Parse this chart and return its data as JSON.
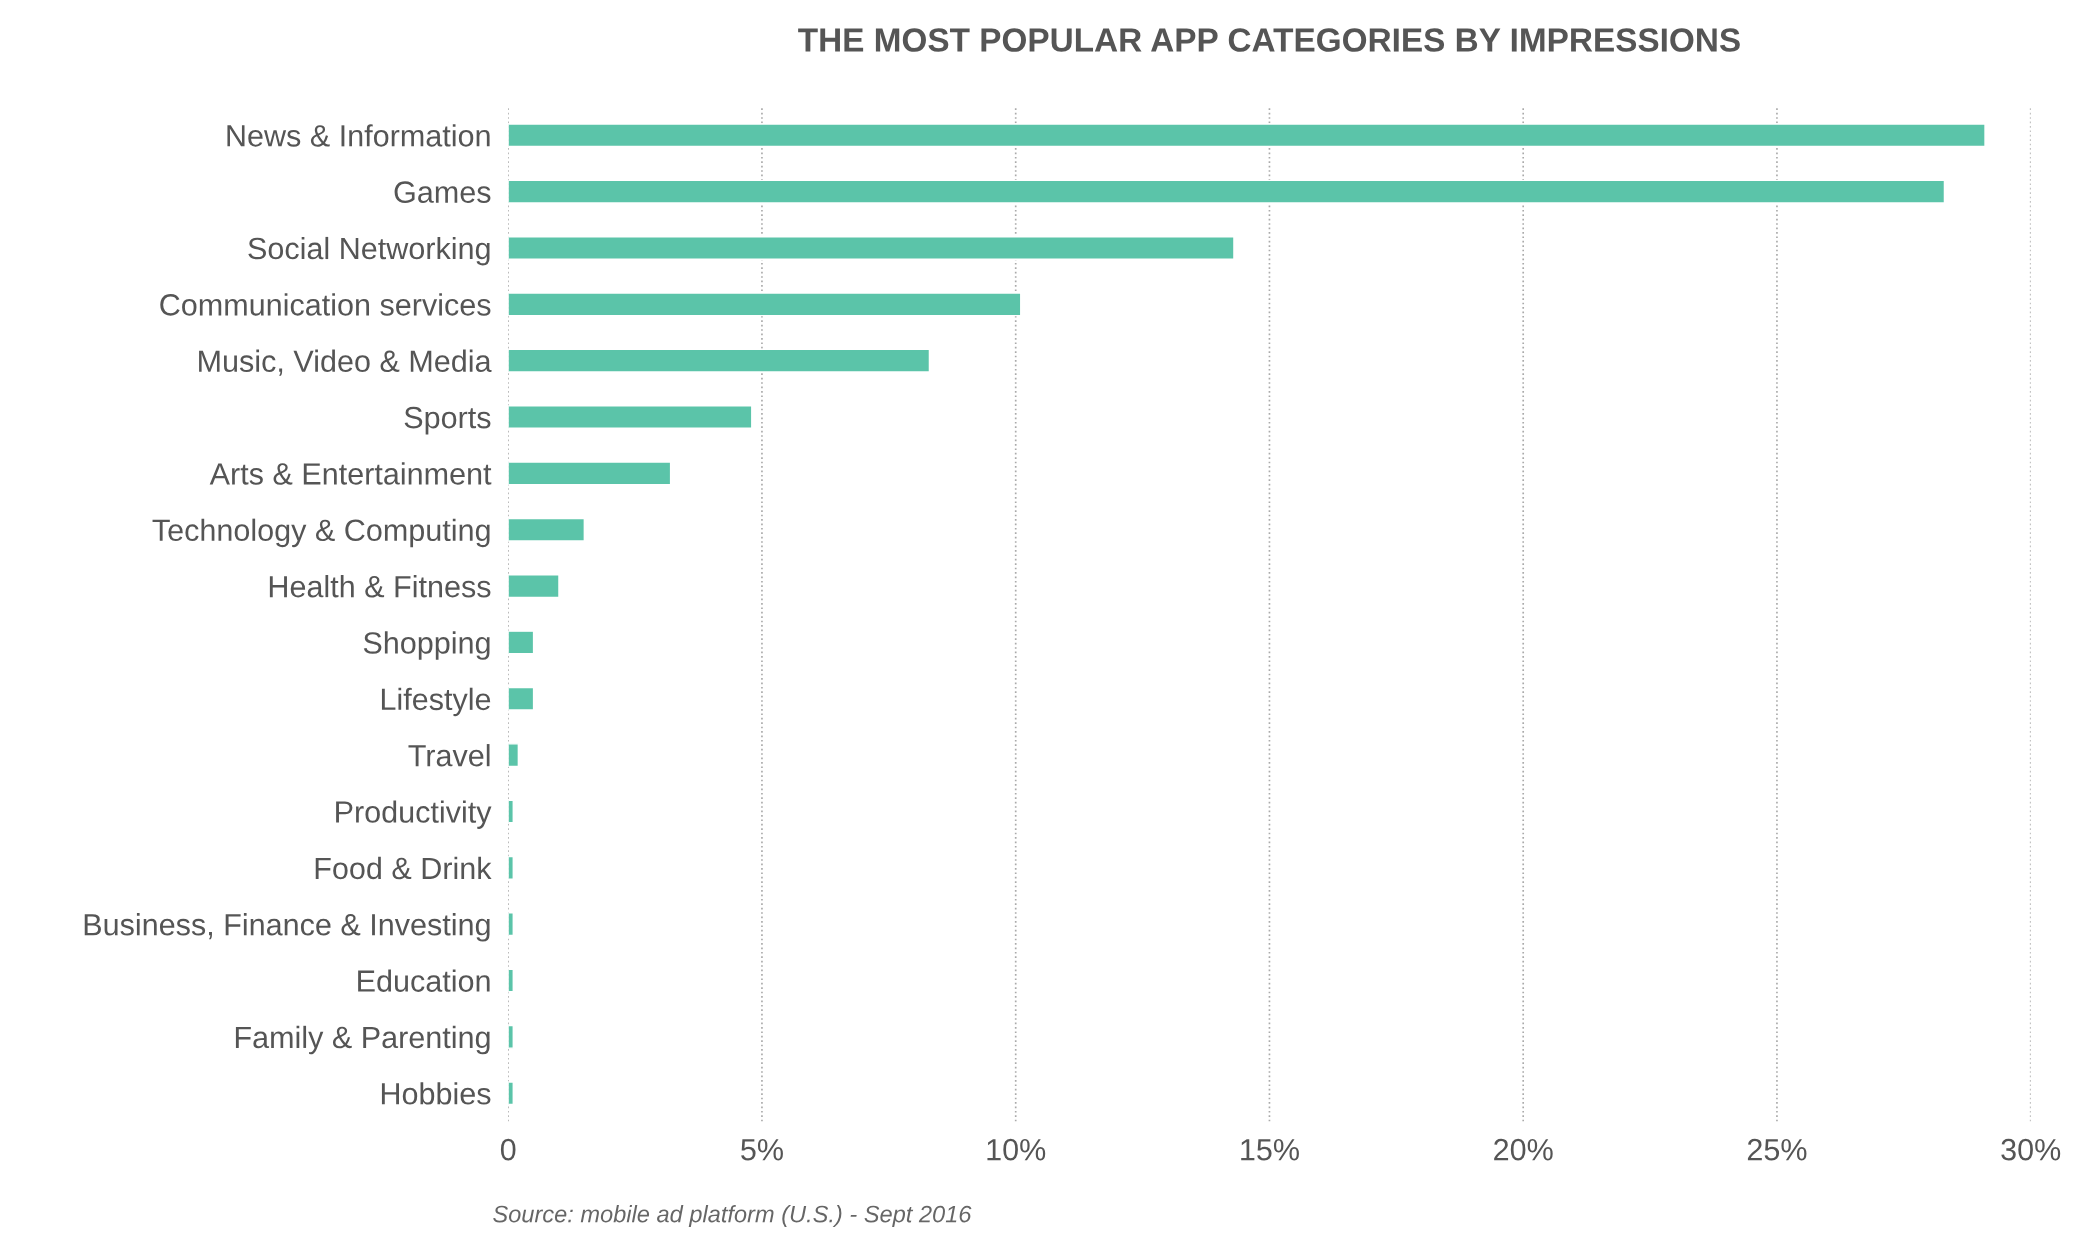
{
  "chart_data": {
    "type": "bar",
    "orientation": "horizontal",
    "title": "THE MOST POPULAR APP CATEGORIES BY IMPRESSIONS",
    "categories": [
      "News & Information",
      "Games",
      "Social Networking",
      "Communication services",
      "Music, Video & Media",
      "Sports",
      "Arts & Entertainment",
      "Technology & Computing",
      "Health & Fitness",
      "Shopping",
      "Lifestyle",
      "Travel",
      "Productivity",
      "Food & Drink",
      "Business, Finance & Investing",
      "Education",
      "Family & Parenting",
      "Hobbies"
    ],
    "values": [
      29.1,
      28.3,
      14.3,
      10.1,
      8.3,
      4.8,
      3.2,
      1.5,
      1.0,
      0.5,
      0.5,
      0.2,
      0.1,
      0.1,
      0.1,
      0.1,
      0.1,
      0.1
    ],
    "color": "#5bc4a9",
    "xlim": [
      0,
      30
    ],
    "xticks": [
      0,
      {
        "value": 5,
        "label": "5%"
      },
      {
        "value": 10,
        "label": "10%"
      },
      {
        "value": 15,
        "label": "15%"
      },
      {
        "value": 20,
        "label": "20%"
      },
      {
        "value": 25,
        "label": "25%"
      },
      {
        "value": 30,
        "label": "30%"
      }
    ],
    "grid": "x",
    "annotations": [
      "Source: mobile ad platform (U.S.) - Sept 2016"
    ]
  }
}
